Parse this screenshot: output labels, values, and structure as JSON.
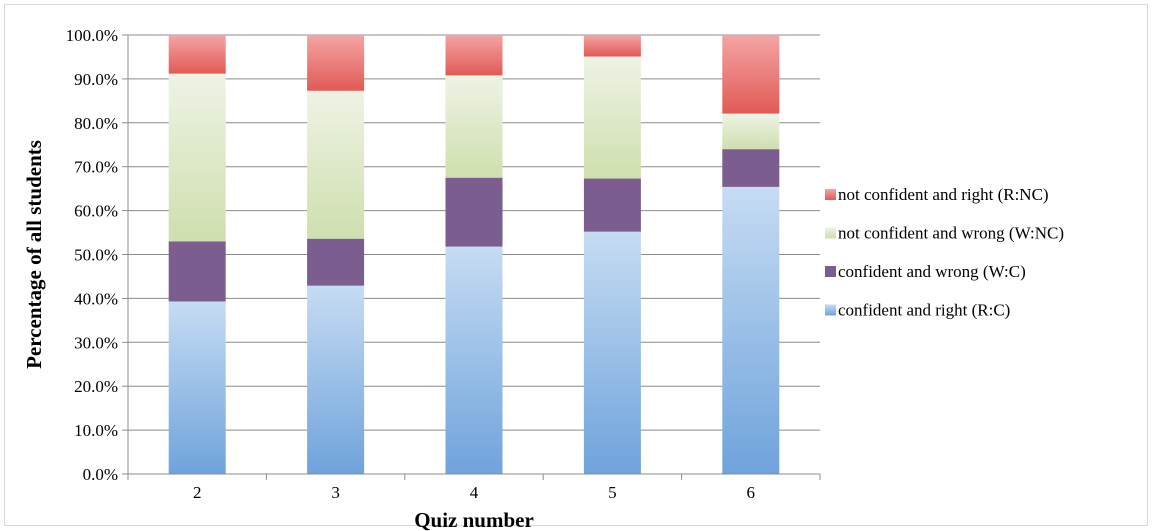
{
  "chart_data": {
    "type": "bar",
    "stacked": true,
    "categories": [
      "2",
      "3",
      "4",
      "5",
      "6"
    ],
    "series": [
      {
        "name": "confident and right (R:C)",
        "color_top": "#c6dcf3",
        "color_bottom": "#6fa3dc",
        "values": [
          39.3,
          42.9,
          51.8,
          55.2,
          65.4
        ]
      },
      {
        "name": "confident and wrong (W:C)",
        "color_top": "#7b5d8f",
        "color_bottom": "#7b5d8f",
        "values": [
          13.7,
          10.7,
          15.7,
          12.1,
          8.6
        ]
      },
      {
        "name": "not confident and wrong (W:NC)",
        "color_top": "#eef3e5",
        "color_bottom": "#cfdfae",
        "values": [
          38.2,
          33.7,
          23.3,
          27.8,
          8.1
        ]
      },
      {
        "name": "not confident and right (R:NC)",
        "color_top": "#f4a5a5",
        "color_bottom": "#e15a55",
        "values": [
          8.8,
          12.7,
          9.2,
          4.9,
          17.9
        ]
      }
    ],
    "legend_order": [
      3,
      2,
      1,
      0
    ],
    "xlabel": "Quiz number",
    "ylabel": "Percentage of all students",
    "ylim": [
      0,
      100
    ],
    "y_ticks": [
      "0.0%",
      "10.0%",
      "20.0%",
      "30.0%",
      "40.0%",
      "50.0%",
      "60.0%",
      "70.0%",
      "80.0%",
      "90.0%",
      "100.0%"
    ],
    "grid": true,
    "legend_position": "right"
  }
}
